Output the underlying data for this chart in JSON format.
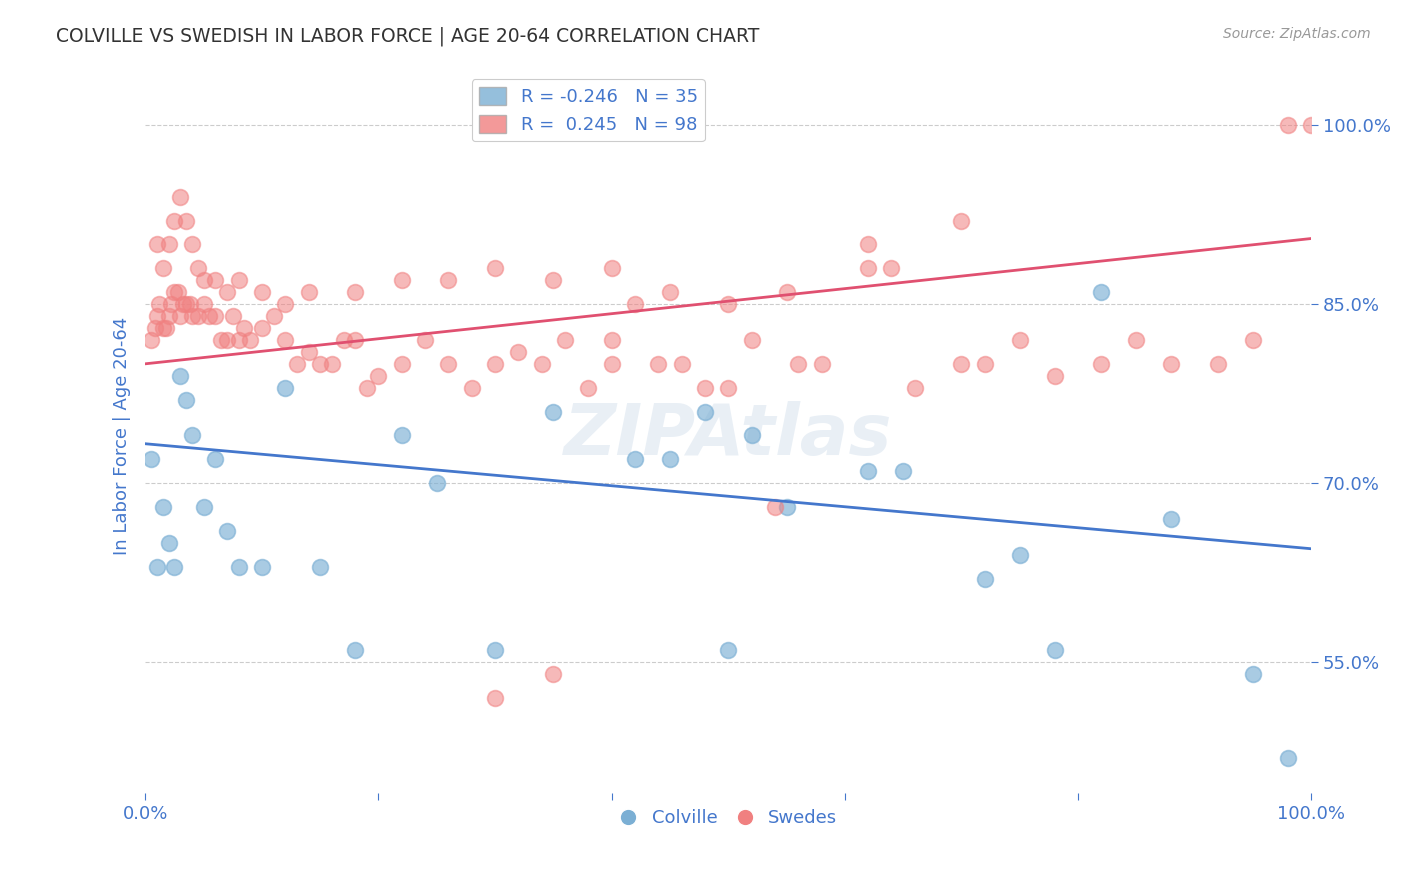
{
  "title": "COLVILLE VS SWEDISH IN LABOR FORCE | AGE 20-64 CORRELATION CHART",
  "source": "Source: ZipAtlas.com",
  "ylabel": "In Labor Force | Age 20-64",
  "watermark": "ZIPAtlas",
  "legend_blue_r": "-0.246",
  "legend_blue_n": "35",
  "legend_pink_r": "0.245",
  "legend_pink_n": "98",
  "blue_label": "Colville",
  "pink_label": "Swedes",
  "xlim": [
    0.0,
    1.0
  ],
  "ylim": [
    0.44,
    1.04
  ],
  "yticks": [
    0.55,
    0.7,
    0.85,
    1.0
  ],
  "ytick_labels": [
    "55.0%",
    "70.0%",
    "85.0%",
    "100.0%"
  ],
  "xticks": [
    0.0,
    0.2,
    0.4,
    0.6,
    0.8,
    1.0
  ],
  "xtick_labels": [
    "0.0%",
    "",
    "",
    "",
    "",
    "100.0%"
  ],
  "blue_color": "#7bafd4",
  "pink_color": "#f08080",
  "blue_line_color": "#4477cc",
  "pink_line_color": "#e05070",
  "background_color": "#ffffff",
  "grid_color": "#cccccc",
  "title_color": "#333333",
  "axis_label_color": "#4477cc",
  "tick_color": "#4477cc",
  "blue_trend": [
    0.733,
    0.645
  ],
  "pink_trend": [
    0.8,
    0.905
  ],
  "blue_x": [
    0.005,
    0.01,
    0.015,
    0.02,
    0.025,
    0.03,
    0.035,
    0.04,
    0.05,
    0.06,
    0.07,
    0.08,
    0.1,
    0.12,
    0.15,
    0.18,
    0.22,
    0.25,
    0.3,
    0.35,
    0.42,
    0.45,
    0.48,
    0.5,
    0.52,
    0.55,
    0.62,
    0.65,
    0.72,
    0.75,
    0.78,
    0.82,
    0.88,
    0.95,
    0.98
  ],
  "blue_y": [
    0.72,
    0.63,
    0.68,
    0.65,
    0.63,
    0.79,
    0.77,
    0.74,
    0.68,
    0.72,
    0.66,
    0.63,
    0.63,
    0.78,
    0.63,
    0.56,
    0.74,
    0.7,
    0.56,
    0.76,
    0.72,
    0.72,
    0.76,
    0.56,
    0.74,
    0.68,
    0.71,
    0.71,
    0.62,
    0.64,
    0.56,
    0.86,
    0.67,
    0.54,
    0.47
  ],
  "pink_x": [
    0.005,
    0.008,
    0.01,
    0.012,
    0.015,
    0.018,
    0.02,
    0.022,
    0.025,
    0.028,
    0.03,
    0.032,
    0.035,
    0.038,
    0.04,
    0.045,
    0.05,
    0.055,
    0.06,
    0.065,
    0.07,
    0.075,
    0.08,
    0.085,
    0.09,
    0.1,
    0.11,
    0.12,
    0.13,
    0.14,
    0.15,
    0.16,
    0.17,
    0.18,
    0.19,
    0.2,
    0.22,
    0.24,
    0.26,
    0.28,
    0.3,
    0.32,
    0.34,
    0.36,
    0.38,
    0.4,
    0.42,
    0.44,
    0.46,
    0.48,
    0.5,
    0.52,
    0.54,
    0.56,
    0.58,
    0.62,
    0.64,
    0.66,
    0.7,
    0.72,
    0.75,
    0.78,
    0.82,
    0.85,
    0.88,
    0.92,
    0.95,
    0.98,
    0.01,
    0.015,
    0.02,
    0.025,
    0.03,
    0.035,
    0.04,
    0.045,
    0.05,
    0.06,
    0.07,
    0.08,
    0.1,
    0.12,
    0.14,
    0.18,
    0.22,
    0.26,
    0.3,
    0.35,
    0.4,
    0.45,
    0.5,
    0.55,
    0.62,
    0.7,
    0.3,
    0.35,
    0.4,
    1.0
  ],
  "pink_y": [
    0.82,
    0.83,
    0.84,
    0.85,
    0.83,
    0.83,
    0.84,
    0.85,
    0.86,
    0.86,
    0.84,
    0.85,
    0.85,
    0.85,
    0.84,
    0.84,
    0.85,
    0.84,
    0.84,
    0.82,
    0.82,
    0.84,
    0.82,
    0.83,
    0.82,
    0.83,
    0.84,
    0.82,
    0.8,
    0.81,
    0.8,
    0.8,
    0.82,
    0.82,
    0.78,
    0.79,
    0.8,
    0.82,
    0.8,
    0.78,
    0.8,
    0.81,
    0.8,
    0.82,
    0.78,
    0.82,
    0.85,
    0.8,
    0.8,
    0.78,
    0.78,
    0.82,
    0.68,
    0.8,
    0.8,
    0.88,
    0.88,
    0.78,
    0.8,
    0.8,
    0.82,
    0.79,
    0.8,
    0.82,
    0.8,
    0.8,
    0.82,
    1.0,
    0.9,
    0.88,
    0.9,
    0.92,
    0.94,
    0.92,
    0.9,
    0.88,
    0.87,
    0.87,
    0.86,
    0.87,
    0.86,
    0.85,
    0.86,
    0.86,
    0.87,
    0.87,
    0.88,
    0.87,
    0.88,
    0.86,
    0.85,
    0.86,
    0.9,
    0.92,
    0.52,
    0.54,
    0.8,
    1.0
  ]
}
